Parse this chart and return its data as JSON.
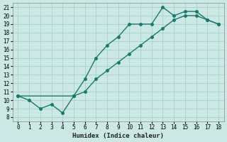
{
  "xlabel": "Humidex (Indice chaleur)",
  "ylabel": "",
  "background_color": "#cce8e4",
  "grid_color": "#aad4ce",
  "line_color": "#1a7a6e",
  "xlim": [
    -0.5,
    18.5
  ],
  "ylim": [
    7.5,
    21.5
  ],
  "xticks": [
    0,
    1,
    2,
    3,
    4,
    5,
    6,
    7,
    8,
    9,
    10,
    11,
    12,
    13,
    14,
    15,
    16,
    17,
    18
  ],
  "yticks": [
    8,
    9,
    10,
    11,
    12,
    13,
    14,
    15,
    16,
    17,
    18,
    19,
    20,
    21
  ],
  "line1_x": [
    0,
    1,
    2,
    3,
    4,
    5,
    6,
    7,
    8,
    9,
    10,
    11,
    12,
    13,
    14,
    15,
    16,
    17,
    18
  ],
  "line1_y": [
    10.5,
    10.0,
    9.0,
    9.5,
    8.5,
    10.5,
    12.5,
    15.0,
    16.5,
    17.5,
    19.0,
    19.0,
    19.0,
    21.0,
    20.0,
    20.5,
    20.5,
    19.5,
    19.0
  ],
  "line2_x": [
    0,
    5,
    6,
    7,
    8,
    9,
    10,
    11,
    12,
    13,
    14,
    15,
    16,
    17,
    18
  ],
  "line2_y": [
    10.5,
    10.5,
    11.0,
    12.5,
    13.5,
    14.5,
    15.5,
    16.5,
    17.5,
    18.5,
    19.5,
    20.0,
    20.0,
    19.5,
    19.0
  ],
  "figwidth": 3.2,
  "figheight": 2.0,
  "dpi": 100
}
